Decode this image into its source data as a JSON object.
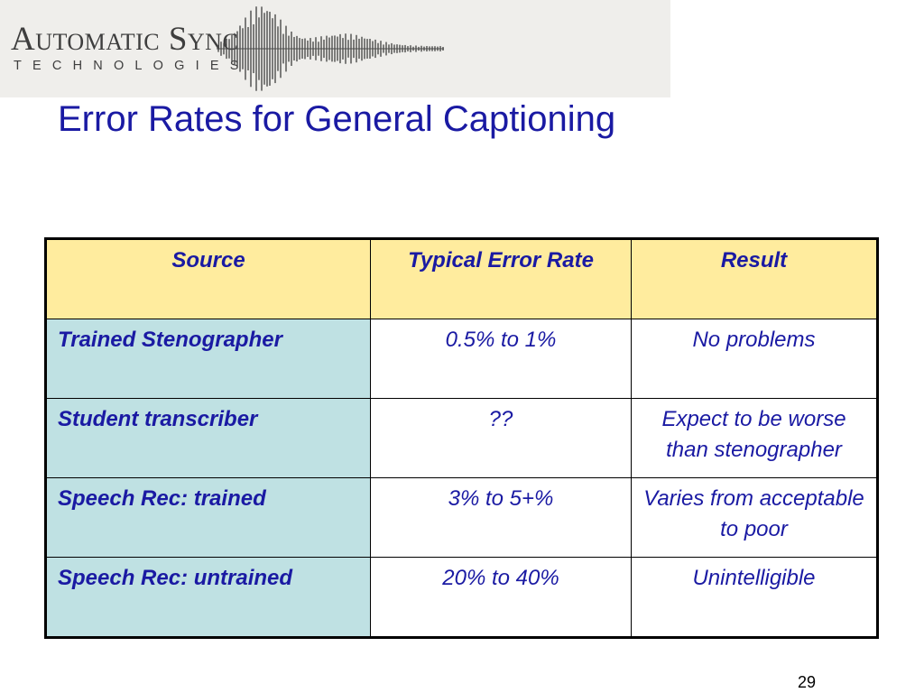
{
  "logo": {
    "line1": "Automatic Sync",
    "line2": "TECHNOLOGIES",
    "icon": "sound-wave-icon"
  },
  "title": "Error Rates for General Captioning",
  "table": {
    "headers": [
      "Source",
      "Typical Error Rate",
      "Result"
    ],
    "rows": [
      {
        "source": "Trained Stenographer",
        "rate": "0.5% to 1%",
        "result": "No problems"
      },
      {
        "source": "Student transcriber",
        "rate": "??",
        "result": "Expect to be worse than stenographer"
      },
      {
        "source": "Speech Rec: trained",
        "rate": "3% to 5+%",
        "result": "Varies from acceptable to poor"
      },
      {
        "source": "Speech Rec: untrained",
        "rate": "20% to 40%",
        "result": "Unintelligible"
      }
    ]
  },
  "page_number": "29",
  "colors": {
    "title": "#1a1aa3",
    "header_bg": "#ffec9e",
    "source_bg": "#bfe1e3",
    "banner_bg": "#efeeeb"
  }
}
